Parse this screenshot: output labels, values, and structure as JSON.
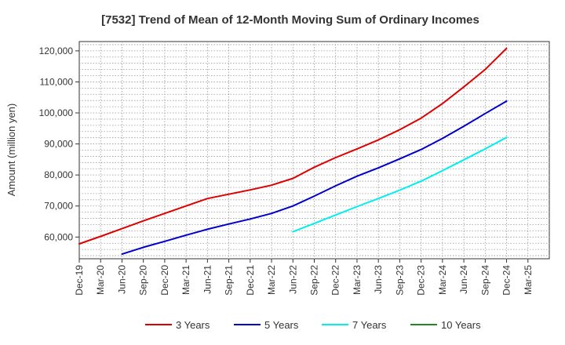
{
  "chart_data": {
    "type": "line",
    "title": "[7532]  Trend of Mean of 12-Month Moving Sum of Ordinary Incomes",
    "xlabel": "",
    "ylabel": "Amount (million yen)",
    "ylim": [
      53000,
      123000
    ],
    "yticks": [
      60000,
      70000,
      80000,
      90000,
      100000,
      110000,
      120000
    ],
    "ytick_labels": [
      "60,000",
      "70,000",
      "80,000",
      "90,000",
      "100,000",
      "110,000",
      "120,000"
    ],
    "xticks": [
      "Dec-19",
      "Mar-20",
      "Jun-20",
      "Sep-20",
      "Dec-20",
      "Mar-21",
      "Jun-21",
      "Sep-21",
      "Dec-21",
      "Mar-22",
      "Jun-22",
      "Sep-22",
      "Dec-22",
      "Mar-23",
      "Jun-23",
      "Sep-23",
      "Dec-23",
      "Mar-24",
      "Jun-24",
      "Sep-24",
      "Dec-24",
      "Mar-25"
    ],
    "grid": true,
    "legend_position": "bottom",
    "series": [
      {
        "name": "3 Years",
        "color": "#dd0000",
        "start_index": 0,
        "values": [
          57800,
          60200,
          62700,
          65200,
          67600,
          70000,
          72400,
          73800,
          75200,
          76700,
          78900,
          82500,
          85600,
          88400,
          91300,
          94600,
          98300,
          103000,
          108400,
          114000,
          120800
        ]
      },
      {
        "name": "5 Years",
        "color": "#0000cc",
        "start_index": 2,
        "values": [
          54500,
          56700,
          58600,
          60600,
          62500,
          64200,
          65800,
          67600,
          70000,
          73200,
          76500,
          79600,
          82300,
          85200,
          88200,
          91800,
          95700,
          99800,
          103800
        ]
      },
      {
        "name": "7 Years",
        "color": "#00eeee",
        "start_index": 10,
        "values": [
          61700,
          64400,
          67100,
          69800,
          72400,
          75100,
          78000,
          81400,
          84900,
          88400,
          92100
        ]
      },
      {
        "name": "10 Years",
        "color": "#228822",
        "start_index": 0,
        "values": []
      }
    ]
  }
}
